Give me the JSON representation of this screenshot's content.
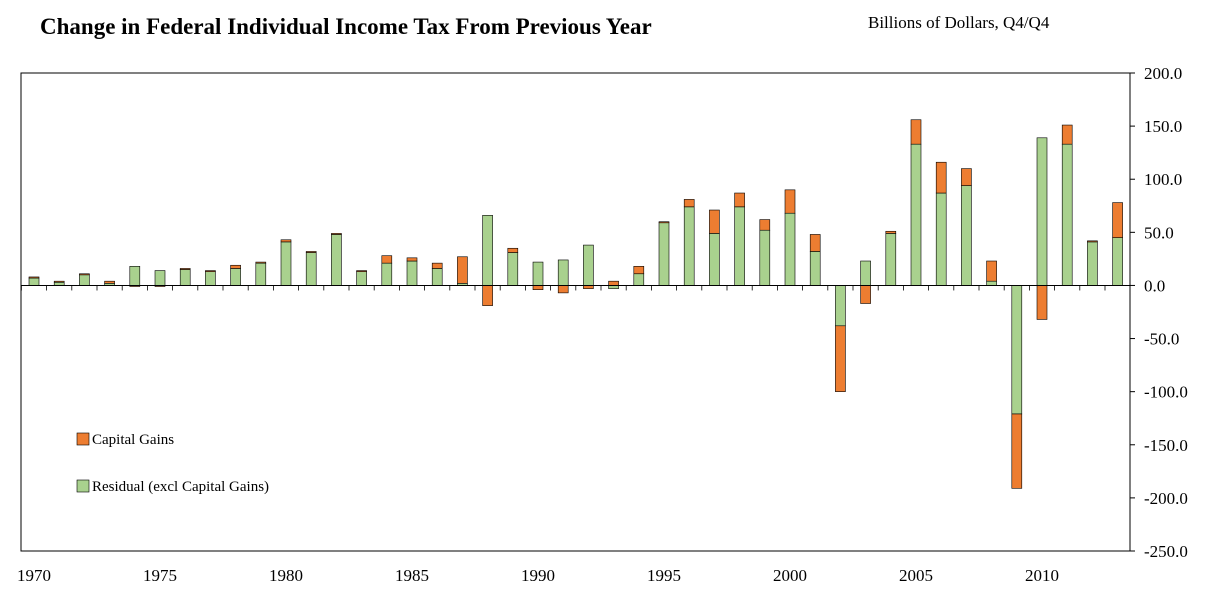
{
  "chart_data": {
    "type": "bar",
    "stacked": true,
    "title": "Change in Federal Individual Income Tax From Previous Year",
    "subtitle": "Billions of Dollars, Q4/Q4",
    "xlabel": "",
    "ylabel": "",
    "ylim": [
      -250,
      200
    ],
    "y_ticks": [
      "200.0",
      "150.0",
      "100.0",
      "50.0",
      "0.0",
      "-50.0",
      "-100.0",
      "-150.0",
      "-200.0",
      "-250.0"
    ],
    "x_ticks": [
      "1970",
      "1975",
      "1980",
      "1985",
      "1990",
      "1995",
      "2000",
      "2005",
      "2010"
    ],
    "y_axis_position": "right",
    "grid": false,
    "legend_position": "bottom-left",
    "categories": [
      1970,
      1971,
      1972,
      1973,
      1974,
      1975,
      1976,
      1977,
      1978,
      1979,
      1980,
      1981,
      1982,
      1983,
      1984,
      1985,
      1986,
      1987,
      1988,
      1989,
      1990,
      1991,
      1992,
      1993,
      1994,
      1995,
      1996,
      1997,
      1998,
      1999,
      2000,
      2001,
      2002,
      2003,
      2004,
      2005,
      2006,
      2007,
      2008,
      2009,
      2010,
      2011,
      2012,
      2013
    ],
    "series": [
      {
        "name": "Capital Gains",
        "color": "#ed7d31",
        "values": [
          1,
          1,
          1,
          2,
          -1,
          -1,
          1,
          1,
          3,
          1,
          2,
          1,
          1,
          1,
          7,
          3,
          5,
          25,
          -19,
          4,
          -4,
          -7,
          -3,
          4,
          7,
          1,
          7,
          22,
          13,
          10,
          22,
          16,
          -62,
          -17,
          2,
          23,
          29,
          16,
          19,
          -70,
          -32,
          18,
          1,
          33
        ],
        "stack_position": "outer"
      },
      {
        "name": "Residual (excl Capital Gains)",
        "color": "#a9d18e",
        "values": [
          7,
          3,
          10,
          2,
          18,
          14,
          15,
          13,
          16,
          21,
          41,
          31,
          48,
          13,
          21,
          23,
          16,
          2,
          66,
          31,
          22,
          24,
          38,
          -3,
          11,
          59,
          74,
          49,
          74,
          52,
          68,
          32,
          -38,
          23,
          49,
          133,
          87,
          94,
          4,
          -121,
          139,
          133,
          41,
          45
        ],
        "stack_position": "base"
      }
    ]
  }
}
